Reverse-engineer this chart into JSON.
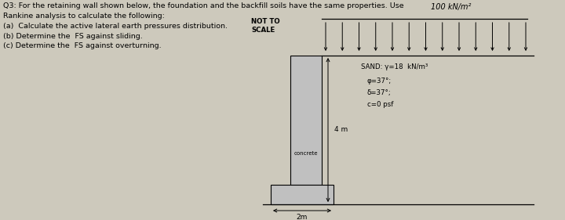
{
  "title_text": "Q3: For the retaining wall shown below, the foundation and the backfill soils have the same properties. Use\nRankine analysis to calculate the following:\n(a)  Calculate the active lateral earth pressures distribution.\n(b) Determine the  FS against sliding.\n(c) Determine the  FS against overturning.",
  "not_to_scale": "NOT TO\nSCALE",
  "surcharge_label": "100 kN/m²",
  "sand_label": "SAND: γ=18  kN/m³",
  "phi_label": "φ=37°;",
  "delta_label": "δ=37°;",
  "c_label": "c=0 psf",
  "height_label": "4 m",
  "width_label": "2m",
  "concrete_label": "concrete",
  "bg_color": "#cdc9bc",
  "wall_fill": "#c0c0c0",
  "line_color": "#000000",
  "text_color": "#000000",
  "fig_w": 7.2,
  "fig_h": 2.81,
  "dpi": 100
}
